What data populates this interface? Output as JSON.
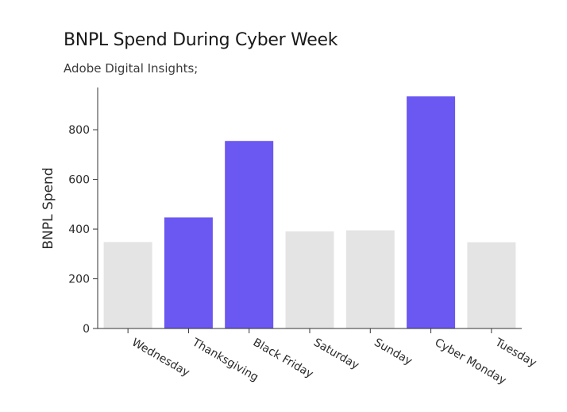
{
  "header": {
    "title": "BNPL Spend During Cyber Week",
    "subtitle": "Adobe Digital Insights;"
  },
  "colors": {
    "highlight": "#6b57f1",
    "base": "#e4e4e4",
    "axis": "#333333"
  },
  "chart_data": {
    "type": "bar",
    "title": "BNPL Spend During Cyber Week",
    "subtitle": "Adobe Digital Insights;",
    "xlabel": "",
    "ylabel": "BNPL Spend",
    "ylim": [
      0,
      970
    ],
    "yticks": [
      0,
      200,
      400,
      600,
      800
    ],
    "categories": [
      "Wednesday",
      "Thanksgiving",
      "Black Friday",
      "Saturday",
      "Sunday",
      "Cyber Monday",
      "Tuesday"
    ],
    "values": [
      348,
      447,
      755,
      391,
      395,
      934,
      347
    ],
    "highlighted": [
      false,
      true,
      true,
      false,
      false,
      true,
      false
    ],
    "grid": false,
    "legend": "none"
  }
}
